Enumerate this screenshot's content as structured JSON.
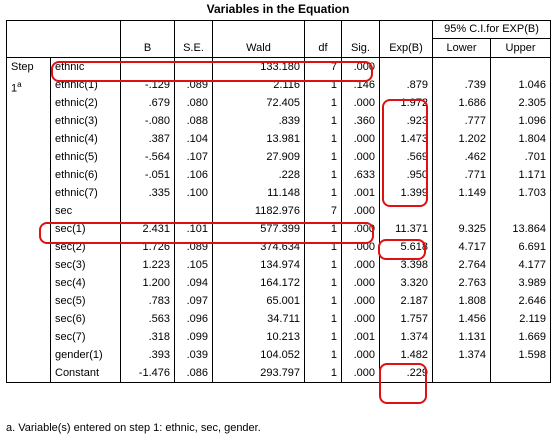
{
  "title": "Variables in the Equation",
  "header": {
    "ci_group": "95% C.I.for EXP(B)",
    "columns": [
      "B",
      "S.E.",
      "Wald",
      "df",
      "Sig.",
      "Exp(B)",
      "Lower",
      "Upper"
    ]
  },
  "step_label": "Step",
  "step_number": "1",
  "step_marker": "a",
  "rows": [
    {
      "var": "ethnic",
      "b": "",
      "se": "",
      "wald": "133.180",
      "df": "7",
      "sig": ".000",
      "expb": "",
      "lower": "",
      "upper": ""
    },
    {
      "var": "ethnic(1)",
      "b": "-.129",
      "se": ".089",
      "wald": "2.116",
      "df": "1",
      "sig": ".146",
      "expb": ".879",
      "lower": ".739",
      "upper": "1.046"
    },
    {
      "var": "ethnic(2)",
      "b": ".679",
      "se": ".080",
      "wald": "72.405",
      "df": "1",
      "sig": ".000",
      "expb": "1.972",
      "lower": "1.686",
      "upper": "2.305"
    },
    {
      "var": "ethnic(3)",
      "b": "-.080",
      "se": ".088",
      "wald": ".839",
      "df": "1",
      "sig": ".360",
      "expb": ".923",
      "lower": ".777",
      "upper": "1.096"
    },
    {
      "var": "ethnic(4)",
      "b": ".387",
      "se": ".104",
      "wald": "13.981",
      "df": "1",
      "sig": ".000",
      "expb": "1.473",
      "lower": "1.202",
      "upper": "1.804"
    },
    {
      "var": "ethnic(5)",
      "b": "-.564",
      "se": ".107",
      "wald": "27.909",
      "df": "1",
      "sig": ".000",
      "expb": ".569",
      "lower": ".462",
      "upper": ".701"
    },
    {
      "var": "ethnic(6)",
      "b": "-.051",
      "se": ".106",
      "wald": ".228",
      "df": "1",
      "sig": ".633",
      "expb": ".950",
      "lower": ".771",
      "upper": "1.171"
    },
    {
      "var": "ethnic(7)",
      "b": ".335",
      "se": ".100",
      "wald": "11.148",
      "df": "1",
      "sig": ".001",
      "expb": "1.399",
      "lower": "1.149",
      "upper": "1.703"
    },
    {
      "var": "sec",
      "b": "",
      "se": "",
      "wald": "1182.976",
      "df": "7",
      "sig": ".000",
      "expb": "",
      "lower": "",
      "upper": ""
    },
    {
      "var": "sec(1)",
      "b": "2.431",
      "se": ".101",
      "wald": "577.399",
      "df": "1",
      "sig": ".000",
      "expb": "11.371",
      "lower": "9.325",
      "upper": "13.864"
    },
    {
      "var": "sec(2)",
      "b": "1.726",
      "se": ".089",
      "wald": "374.634",
      "df": "1",
      "sig": ".000",
      "expb": "5.618",
      "lower": "4.717",
      "upper": "6.691"
    },
    {
      "var": "sec(3)",
      "b": "1.223",
      "se": ".105",
      "wald": "134.974",
      "df": "1",
      "sig": ".000",
      "expb": "3.398",
      "lower": "2.764",
      "upper": "4.177"
    },
    {
      "var": "sec(4)",
      "b": "1.200",
      "se": ".094",
      "wald": "164.172",
      "df": "1",
      "sig": ".000",
      "expb": "3.320",
      "lower": "2.763",
      "upper": "3.989"
    },
    {
      "var": "sec(5)",
      "b": ".783",
      "se": ".097",
      "wald": "65.001",
      "df": "1",
      "sig": ".000",
      "expb": "2.187",
      "lower": "1.808",
      "upper": "2.646"
    },
    {
      "var": "sec(6)",
      "b": ".563",
      "se": ".096",
      "wald": "34.711",
      "df": "1",
      "sig": ".000",
      "expb": "1.757",
      "lower": "1.456",
      "upper": "2.119"
    },
    {
      "var": "sec(7)",
      "b": ".318",
      "se": ".099",
      "wald": "10.213",
      "df": "1",
      "sig": ".001",
      "expb": "1.374",
      "lower": "1.131",
      "upper": "1.669"
    },
    {
      "var": "gender(1)",
      "b": ".393",
      "se": ".039",
      "wald": "104.052",
      "df": "1",
      "sig": ".000",
      "expb": "1.482",
      "lower": "1.374",
      "upper": "1.598"
    },
    {
      "var": "Constant",
      "b": "-1.476",
      "se": ".086",
      "wald": "293.797",
      "df": "1",
      "sig": ".000",
      "expb": ".229",
      "lower": "",
      "upper": ""
    }
  ],
  "footnote": "a. Variable(s) entered on step 1: ethnic, sec, gender.",
  "highlight_color": "#e01010"
}
